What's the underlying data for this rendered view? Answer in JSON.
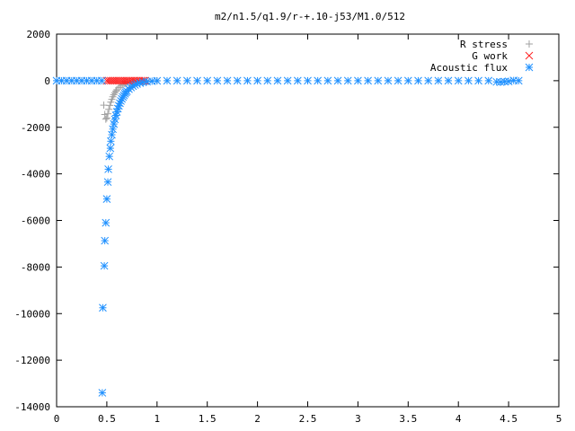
{
  "chart_data": {
    "type": "scatter",
    "title": "m2/n1.5/q1.9/r-+.10-j53/M1.0/512",
    "xlabel": "",
    "ylabel": "",
    "xlim": [
      0,
      5
    ],
    "ylim": [
      -14000,
      2000
    ],
    "x_ticks": [
      0,
      0.5,
      1,
      1.5,
      2,
      2.5,
      3,
      3.5,
      4,
      4.5,
      5
    ],
    "x_tick_labels": [
      "0",
      "0.5",
      "1",
      "1.5",
      "2",
      "2.5",
      "3",
      "3.5",
      "4",
      "4.5",
      "5"
    ],
    "y_ticks": [
      2000,
      0,
      -2000,
      -4000,
      -6000,
      -8000,
      -10000,
      -12000,
      -14000
    ],
    "y_tick_labels": [
      "2000",
      "0",
      "-2000",
      "-4000",
      "-6000",
      "-8000",
      "-10000",
      "-12000",
      "-14000"
    ],
    "grid": false,
    "legend_position": "top-right",
    "series": [
      {
        "name": "R stress",
        "marker": "plus",
        "color": "#a0a0a0",
        "points": [
          [
            0.47,
            -1050
          ],
          [
            0.48,
            -1450
          ],
          [
            0.49,
            -1650
          ],
          [
            0.5,
            -1600
          ],
          [
            0.51,
            -1420
          ],
          [
            0.52,
            -1230
          ],
          [
            0.53,
            -1060
          ],
          [
            0.54,
            -920
          ],
          [
            0.55,
            -800
          ],
          [
            0.56,
            -690
          ],
          [
            0.57,
            -600
          ],
          [
            0.58,
            -520
          ],
          [
            0.59,
            -450
          ],
          [
            0.6,
            -390
          ],
          [
            0.62,
            -300
          ],
          [
            0.64,
            -230
          ],
          [
            0.66,
            -170
          ],
          [
            0.68,
            -130
          ],
          [
            0.7,
            -95
          ],
          [
            0.73,
            -60
          ],
          [
            0.76,
            -35
          ],
          [
            0.8,
            -15
          ],
          [
            0.85,
            -5
          ],
          [
            0.9,
            0
          ],
          [
            1.0,
            0
          ]
        ]
      },
      {
        "name": "G work",
        "marker": "cross",
        "color": "#ff2020",
        "points": [
          [
            0.5,
            0
          ],
          [
            0.52,
            0
          ],
          [
            0.54,
            0
          ],
          [
            0.56,
            0
          ],
          [
            0.58,
            0
          ],
          [
            0.6,
            0
          ],
          [
            0.62,
            0
          ],
          [
            0.64,
            0
          ],
          [
            0.66,
            0
          ],
          [
            0.68,
            0
          ],
          [
            0.7,
            0
          ],
          [
            0.72,
            0
          ],
          [
            0.74,
            0
          ],
          [
            0.76,
            0
          ],
          [
            0.78,
            0
          ],
          [
            0.8,
            0
          ],
          [
            0.82,
            0
          ],
          [
            0.84,
            0
          ],
          [
            0.86,
            0
          ],
          [
            0.88,
            0
          ]
        ]
      },
      {
        "name": "Acoustic flux",
        "marker": "star",
        "color": "#1e90ff",
        "points": [
          [
            0.0,
            0
          ],
          [
            0.05,
            0
          ],
          [
            0.1,
            0
          ],
          [
            0.15,
            0
          ],
          [
            0.2,
            0
          ],
          [
            0.25,
            0
          ],
          [
            0.3,
            0
          ],
          [
            0.35,
            0
          ],
          [
            0.4,
            0
          ],
          [
            0.45,
            0
          ],
          [
            0.455,
            -13400
          ],
          [
            0.46,
            -9750
          ],
          [
            0.475,
            -7950
          ],
          [
            0.48,
            -6870
          ],
          [
            0.49,
            -6100
          ],
          [
            0.5,
            -5080
          ],
          [
            0.51,
            -4350
          ],
          [
            0.515,
            -3800
          ],
          [
            0.525,
            -3250
          ],
          [
            0.535,
            -2900
          ],
          [
            0.54,
            -2600
          ],
          [
            0.55,
            -2320
          ],
          [
            0.56,
            -2080
          ],
          [
            0.57,
            -1860
          ],
          [
            0.58,
            -1660
          ],
          [
            0.59,
            -1490
          ],
          [
            0.6,
            -1340
          ],
          [
            0.61,
            -1200
          ],
          [
            0.62,
            -1080
          ],
          [
            0.63,
            -970
          ],
          [
            0.64,
            -870
          ],
          [
            0.65,
            -780
          ],
          [
            0.66,
            -700
          ],
          [
            0.67,
            -630
          ],
          [
            0.68,
            -560
          ],
          [
            0.69,
            -500
          ],
          [
            0.7,
            -450
          ],
          [
            0.72,
            -360
          ],
          [
            0.74,
            -290
          ],
          [
            0.76,
            -230
          ],
          [
            0.78,
            -180
          ],
          [
            0.8,
            -140
          ],
          [
            0.83,
            -100
          ],
          [
            0.86,
            -70
          ],
          [
            0.9,
            -40
          ],
          [
            0.95,
            -20
          ],
          [
            1.0,
            -5
          ],
          [
            1.1,
            0
          ],
          [
            1.2,
            0
          ],
          [
            1.3,
            0
          ],
          [
            1.4,
            0
          ],
          [
            1.5,
            0
          ],
          [
            1.6,
            0
          ],
          [
            1.7,
            0
          ],
          [
            1.8,
            0
          ],
          [
            1.9,
            0
          ],
          [
            2.0,
            0
          ],
          [
            2.1,
            0
          ],
          [
            2.2,
            0
          ],
          [
            2.3,
            0
          ],
          [
            2.4,
            0
          ],
          [
            2.5,
            0
          ],
          [
            2.6,
            0
          ],
          [
            2.7,
            0
          ],
          [
            2.8,
            0
          ],
          [
            2.9,
            0
          ],
          [
            3.0,
            0
          ],
          [
            3.1,
            0
          ],
          [
            3.2,
            0
          ],
          [
            3.3,
            0
          ],
          [
            3.4,
            0
          ],
          [
            3.5,
            0
          ],
          [
            3.6,
            0
          ],
          [
            3.7,
            0
          ],
          [
            3.8,
            0
          ],
          [
            3.9,
            0
          ],
          [
            4.0,
            0
          ],
          [
            4.1,
            0
          ],
          [
            4.2,
            0
          ],
          [
            4.3,
            0
          ],
          [
            4.38,
            -50
          ],
          [
            4.42,
            -60
          ],
          [
            4.46,
            -40
          ],
          [
            4.5,
            -30
          ],
          [
            4.55,
            10
          ],
          [
            4.6,
            0
          ]
        ]
      }
    ]
  }
}
